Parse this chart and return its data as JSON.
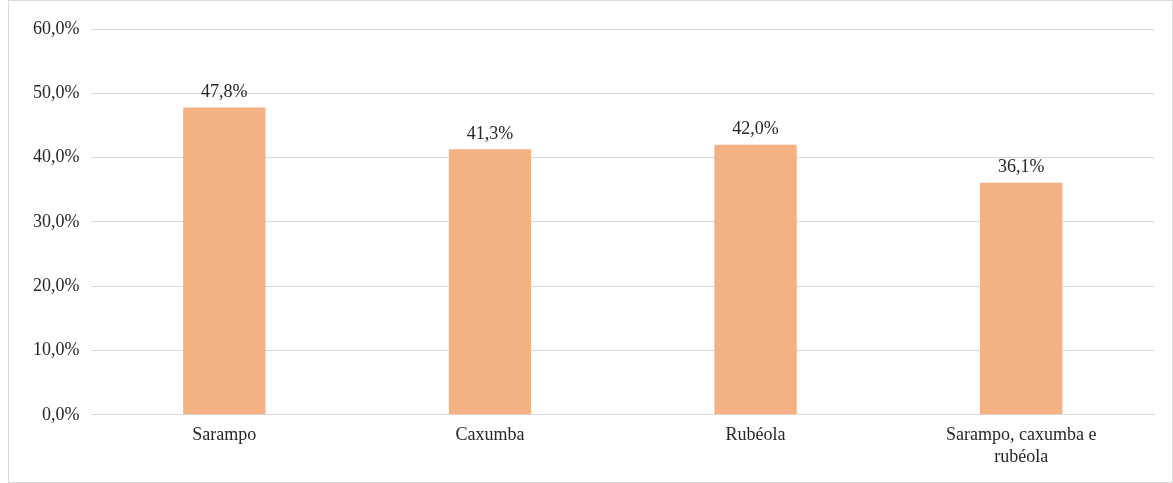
{
  "chart_data": {
    "type": "bar",
    "categories": [
      "Sarampo",
      "Caxumba",
      "Rubéola",
      "Sarampo, caxumba e rubéola"
    ],
    "values": [
      47.8,
      41.3,
      42.0,
      36.1
    ],
    "value_labels": [
      "47,8%",
      "41,3%",
      "42,0%",
      "36,1%"
    ],
    "color": "#f4b183",
    "ylim": [
      0,
      60
    ],
    "yticks": [
      {
        "value": 0,
        "label": "0,0%"
      },
      {
        "value": 10,
        "label": "10,0%"
      },
      {
        "value": 20,
        "label": "20,0%"
      },
      {
        "value": 30,
        "label": "30,0%"
      },
      {
        "value": 40,
        "label": "40,0%"
      },
      {
        "value": 50,
        "label": "50,0%"
      },
      {
        "value": 60,
        "label": "60,0%"
      }
    ],
    "grid": "y",
    "legend": false
  }
}
